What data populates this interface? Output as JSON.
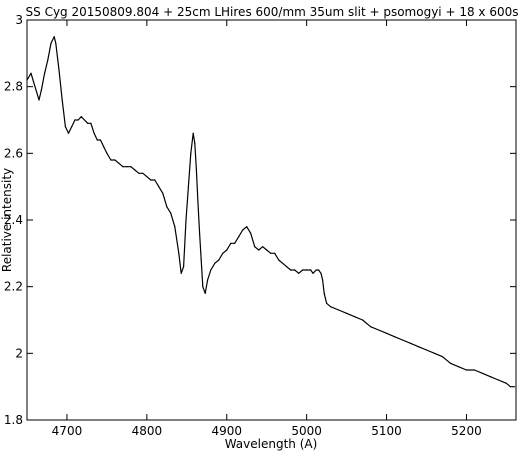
{
  "chart_data": {
    "type": "line",
    "title": "SS Cyg 20150809.804 + 25cm LHires 600/mm 35um slit + psomogyi + 18 x 600s",
    "xlabel": "Wavelength (A)",
    "ylabel": "Relative intensity",
    "xlim": [
      4650,
      5262
    ],
    "ylim": [
      1.8,
      3.0
    ],
    "grid": false,
    "legend": "none",
    "line_color": "#000000",
    "x_ticks": [
      4700,
      4800,
      4900,
      5000,
      5100,
      5200
    ],
    "y_ticks": [
      1.8,
      2.0,
      2.2,
      2.4,
      2.6,
      2.8,
      3.0
    ],
    "x_tick_labels": [
      "4700",
      "4800",
      "4900",
      "5000",
      "5100",
      "5200"
    ],
    "y_tick_labels": [
      "1.8",
      "2",
      "2.2",
      "2.4",
      "2.6",
      "2.8",
      "3"
    ],
    "series": [
      {
        "x": [
          4650,
          4655,
          4660,
          4665,
          4668,
          4672,
          4676,
          4680,
          4684,
          4686,
          4690,
          4694,
          4698,
          4702,
          4706,
          4710,
          4714,
          4718,
          4722,
          4726,
          4730,
          4734,
          4738,
          4742,
          4746,
          4750,
          4755,
          4760,
          4765,
          4770,
          4775,
          4780,
          4785,
          4790,
          4795,
          4800,
          4805,
          4810,
          4815,
          4820,
          4825,
          4830,
          4835,
          4840,
          4843,
          4846,
          4849,
          4852,
          4855,
          4858,
          4860,
          4862,
          4864,
          4866,
          4868,
          4870,
          4873,
          4876,
          4880,
          4885,
          4890,
          4895,
          4900,
          4905,
          4910,
          4915,
          4920,
          4925,
          4930,
          4935,
          4940,
          4945,
          4950,
          4955,
          4960,
          4965,
          4970,
          4975,
          4980,
          4985,
          4990,
          4995,
          5000,
          5005,
          5008,
          5012,
          5015,
          5018,
          5020,
          5022,
          5025,
          5030,
          5040,
          5050,
          5060,
          5070,
          5080,
          5090,
          5100,
          5110,
          5120,
          5130,
          5140,
          5150,
          5160,
          5170,
          5180,
          5190,
          5200,
          5210,
          5220,
          5230,
          5240,
          5250,
          5255,
          5260
        ],
        "values": [
          2.82,
          2.84,
          2.8,
          2.76,
          2.79,
          2.84,
          2.88,
          2.93,
          2.95,
          2.93,
          2.85,
          2.76,
          2.68,
          2.66,
          2.68,
          2.7,
          2.7,
          2.71,
          2.7,
          2.69,
          2.69,
          2.66,
          2.64,
          2.64,
          2.62,
          2.6,
          2.58,
          2.58,
          2.57,
          2.56,
          2.56,
          2.56,
          2.55,
          2.54,
          2.54,
          2.53,
          2.52,
          2.52,
          2.5,
          2.48,
          2.44,
          2.42,
          2.38,
          2.3,
          2.24,
          2.26,
          2.4,
          2.5,
          2.6,
          2.66,
          2.63,
          2.55,
          2.45,
          2.36,
          2.28,
          2.2,
          2.18,
          2.22,
          2.25,
          2.27,
          2.28,
          2.3,
          2.31,
          2.33,
          2.33,
          2.35,
          2.37,
          2.38,
          2.36,
          2.32,
          2.31,
          2.32,
          2.31,
          2.3,
          2.3,
          2.28,
          2.27,
          2.26,
          2.25,
          2.25,
          2.24,
          2.25,
          2.25,
          2.25,
          2.24,
          2.25,
          2.25,
          2.24,
          2.22,
          2.18,
          2.15,
          2.14,
          2.13,
          2.12,
          2.11,
          2.1,
          2.08,
          2.07,
          2.06,
          2.05,
          2.04,
          2.03,
          2.02,
          2.01,
          2.0,
          1.99,
          1.97,
          1.96,
          1.95,
          1.95,
          1.94,
          1.93,
          1.92,
          1.91,
          1.9,
          1.9
        ]
      }
    ]
  }
}
